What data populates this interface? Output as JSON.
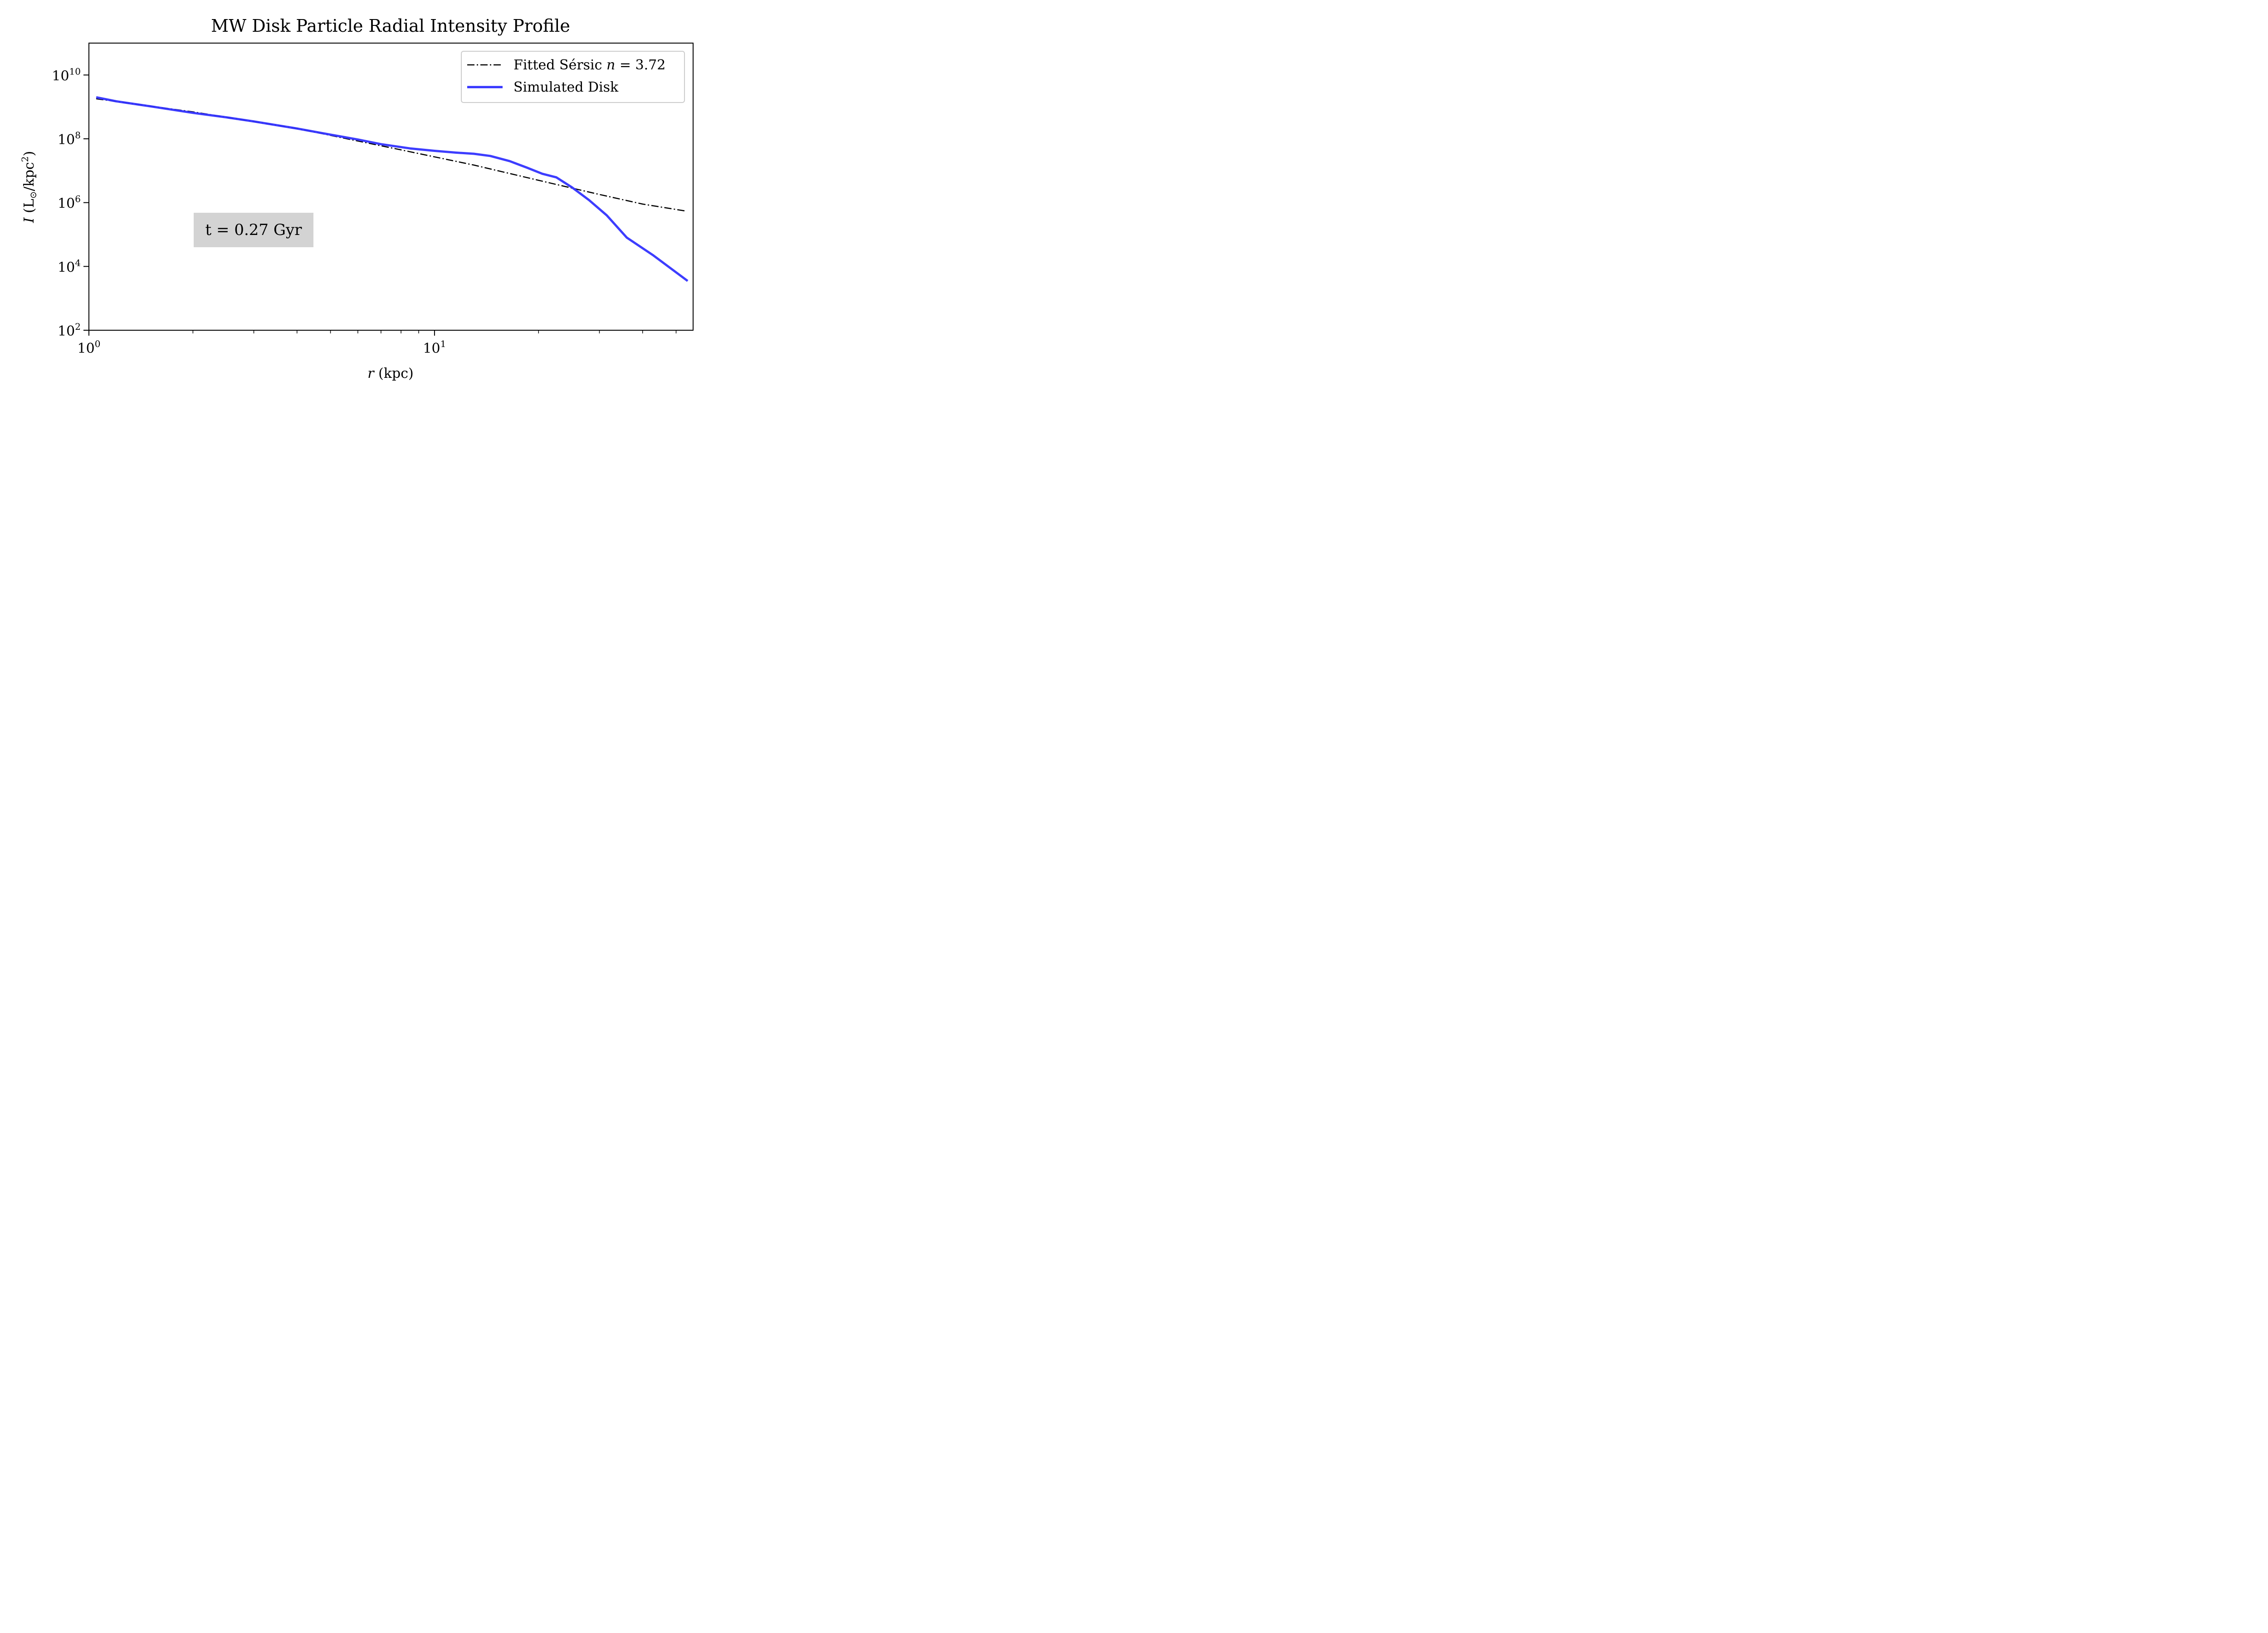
{
  "chart_data": {
    "type": "line",
    "title": "MW Disk Particle Radial Intensity Profile",
    "xlabel": "r (kpc)",
    "ylabel": "I (L⊙/kpc²)",
    "xscale": "log",
    "yscale": "log",
    "xlim": [
      1.0,
      56.0
    ],
    "ylim": [
      100,
      100000000000
    ],
    "x_ticks": [
      {
        "base": "10",
        "exp": "0",
        "value": 1
      },
      {
        "base": "10",
        "exp": "1",
        "value": 10
      }
    ],
    "y_ticks": [
      {
        "base": "10",
        "exp": "2",
        "value": 100
      },
      {
        "base": "10",
        "exp": "4",
        "value": 10000
      },
      {
        "base": "10",
        "exp": "6",
        "value": 1000000
      },
      {
        "base": "10",
        "exp": "8",
        "value": 100000000
      },
      {
        "base": "10",
        "exp": "10",
        "value": 10000000000
      }
    ],
    "grid": false,
    "legend_position": "top-right",
    "series": [
      {
        "name": "Fitted Sérsic n = 3.72",
        "legend_prefix": "Fitted Sérsic ",
        "legend_var": "n",
        "legend_suffix": " = 3.72",
        "style": "dashdot",
        "color": "#000000",
        "x": [
          1.05,
          2.0,
          4.0,
          8.0,
          13.0,
          20.0,
          30.0,
          40.0,
          53.0
        ],
        "y": [
          1800000000.0,
          700000000.0,
          210000000.0,
          45000000.0,
          15000000.0,
          5000000.0,
          1800000.0,
          900000.0,
          550000.0
        ]
      },
      {
        "name": "Simulated Disk",
        "style": "solid",
        "color": "#3333ff",
        "x": [
          1.05,
          1.2,
          1.5,
          2.0,
          2.5,
          3.0,
          4.0,
          5.0,
          6.0,
          7.0,
          8.5,
          10.0,
          11.5,
          13.0,
          14.5,
          16.5,
          18.5,
          20.5,
          22.5,
          25.0,
          28.0,
          31.5,
          36.0,
          43.0,
          54.0
        ],
        "y": [
          2000000000.0,
          1500000000.0,
          1050000000.0,
          650000000.0,
          470000000.0,
          350000000.0,
          210000000.0,
          135000000.0,
          95000000.0,
          68000000.0,
          50000000.0,
          42000000.0,
          37000000.0,
          34000000.0,
          29000000.0,
          20000000.0,
          12500000.0,
          8000000.0,
          6200000.0,
          3000000.0,
          1200000.0,
          400000.0,
          80000.0,
          22000.0,
          3500.0
        ]
      }
    ],
    "annotation": "t = 0.27 Gyr",
    "annotation_bg": "#d3d3d3"
  }
}
